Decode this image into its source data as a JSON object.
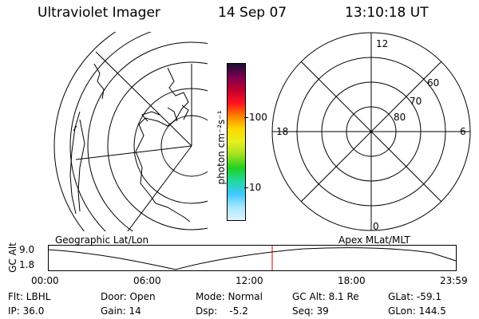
{
  "header": {
    "instrument": "Ultraviolet Imager",
    "date": "14 Sep 07",
    "time": "13:10:18 UT"
  },
  "colorbar": {
    "unit_label": "photon cm⁻²s⁻¹",
    "tick_100": "100",
    "tick_10": "10",
    "colors": [
      "#1a1030",
      "#7a0050",
      "#c0002e",
      "#ff1020",
      "#ff8000",
      "#ffd800",
      "#e8f020",
      "#a0e020",
      "#20d020",
      "#20d8a0",
      "#40c8ff",
      "#a8e8ff",
      "#e0f4ff"
    ]
  },
  "polar_plot": {
    "label_12": "12",
    "label_18": "18",
    "label_6": "6",
    "label_0": "0",
    "label_60": "60",
    "label_70": "70",
    "label_80": "80"
  },
  "panels": {
    "left_caption": "Geographic Lat/Lon",
    "right_caption": "Apex MLat/MLT"
  },
  "altitude_plot": {
    "ylabel": "GC Alt",
    "ytick_top": "9.0",
    "ytick_bottom": "1.8",
    "xticks": [
      "00:00",
      "06:00",
      "12:00",
      "18:00",
      "23:59"
    ],
    "current_time_fraction": 0.5488
  },
  "info": {
    "flt": "Flt: LBHL",
    "door": "Door: Open",
    "mode": "Mode: Normal",
    "gc_alt": "GC Alt: 8.1 Re",
    "glat": "GLat: -59.1",
    "ip": "IP: 36.0",
    "gain": "Gain: 14",
    "dsp": "Dsp:    -5.2",
    "seq": "Seq: 39",
    "glon": "GLon: 144.5"
  }
}
